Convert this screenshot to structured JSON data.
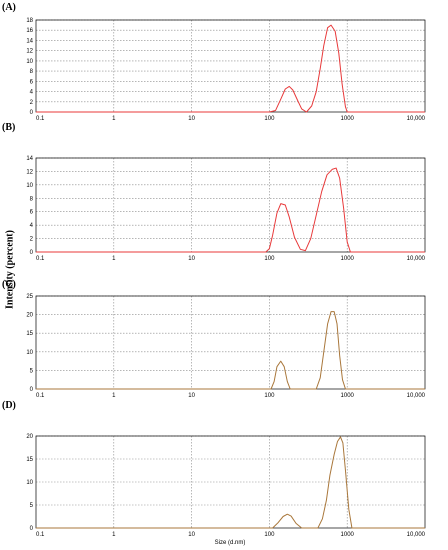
{
  "figure": {
    "ylabel": "Intensity (percent)",
    "xlabel": "Size (d.nm)"
  },
  "chart_data": [
    {
      "panel": "(A)",
      "type": "line",
      "xscale": "log",
      "xlim": [
        0.1,
        10000
      ],
      "ylim": [
        0,
        18
      ],
      "x_ticks": [
        "0.1",
        "1",
        "10",
        "100",
        "1000",
        "10,000"
      ],
      "y_ticks": [
        "0",
        "2",
        "4",
        "6",
        "8",
        "10",
        "12",
        "14",
        "16",
        "18"
      ],
      "grid": true,
      "color": "#e8393a",
      "series": [
        {
          "x": [
            0.1,
            100,
            120,
            140,
            160,
            180,
            200,
            230,
            260,
            300,
            350,
            400,
            450,
            500,
            560,
            620,
            700,
            780,
            860,
            950,
            1000,
            10000
          ],
          "y": [
            0,
            0,
            0.3,
            2.5,
            4.5,
            5.0,
            4.3,
            2.3,
            0.6,
            0,
            1.2,
            4.0,
            8.5,
            13.0,
            16.5,
            17.0,
            15.8,
            11.5,
            5.5,
            1.0,
            0,
            0
          ]
        }
      ]
    },
    {
      "panel": "(B)",
      "type": "line",
      "xscale": "log",
      "xlim": [
        0.1,
        10000
      ],
      "ylim": [
        0,
        14
      ],
      "x_ticks": [
        "0.1",
        "1",
        "10",
        "100",
        "1000",
        "10,000"
      ],
      "y_ticks": [
        "0",
        "2",
        "4",
        "6",
        "8",
        "10",
        "12",
        "14"
      ],
      "grid": true,
      "color": "#e8393a",
      "series": [
        {
          "x": [
            0.1,
            90,
            100,
            110,
            125,
            140,
            160,
            180,
            210,
            250,
            290,
            340,
            400,
            470,
            550,
            640,
            720,
            800,
            900,
            1000,
            1100,
            10000
          ],
          "y": [
            0,
            0,
            0.5,
            2.5,
            5.8,
            7.2,
            7.0,
            5.2,
            2.2,
            0.4,
            0.2,
            2.0,
            5.5,
            9.0,
            11.5,
            12.3,
            12.5,
            11.0,
            6.5,
            1.5,
            0,
            0
          ]
        }
      ]
    },
    {
      "panel": "(C)",
      "type": "line",
      "xscale": "log",
      "xlim": [
        0.1,
        10000
      ],
      "ylim": [
        0,
        25
      ],
      "x_ticks": [
        "0.1",
        "1",
        "10",
        "100",
        "1000",
        "10,000"
      ],
      "y_ticks": [
        "0",
        "5",
        "10",
        "15",
        "20",
        "25"
      ],
      "grid": true,
      "color": "#a9773b",
      "series": [
        {
          "x": [
            0.1,
            105,
            115,
            125,
            140,
            155,
            170,
            185,
            400,
            450,
            500,
            560,
            620,
            680,
            740,
            800,
            870,
            950,
            10000
          ],
          "y": [
            0,
            0,
            2.0,
            6.0,
            7.5,
            6.0,
            2.0,
            0,
            0,
            3.0,
            10.0,
            17.5,
            20.8,
            20.8,
            17.5,
            9.0,
            2.5,
            0,
            0
          ]
        }
      ]
    },
    {
      "panel": "(D)",
      "type": "line",
      "xscale": "log",
      "xlim": [
        0.1,
        10000
      ],
      "ylim": [
        0,
        20
      ],
      "x_ticks": [
        "0.1",
        "1",
        "10",
        "100",
        "1000",
        "10,000"
      ],
      "y_ticks": [
        "0",
        "5",
        "10",
        "15",
        "20"
      ],
      "grid": true,
      "color": "#a9773b",
      "series": [
        {
          "x": [
            0.1,
            110,
            130,
            150,
            170,
            190,
            220,
            260,
            420,
            480,
            540,
            600,
            680,
            750,
            820,
            880,
            950,
            1050,
            1150,
            10000
          ],
          "y": [
            0,
            0,
            1.2,
            2.5,
            3.0,
            2.6,
            1.0,
            0,
            0,
            2.0,
            6.0,
            11.5,
            16.0,
            18.8,
            19.8,
            18.5,
            12.5,
            4.0,
            0,
            0
          ]
        }
      ]
    }
  ]
}
